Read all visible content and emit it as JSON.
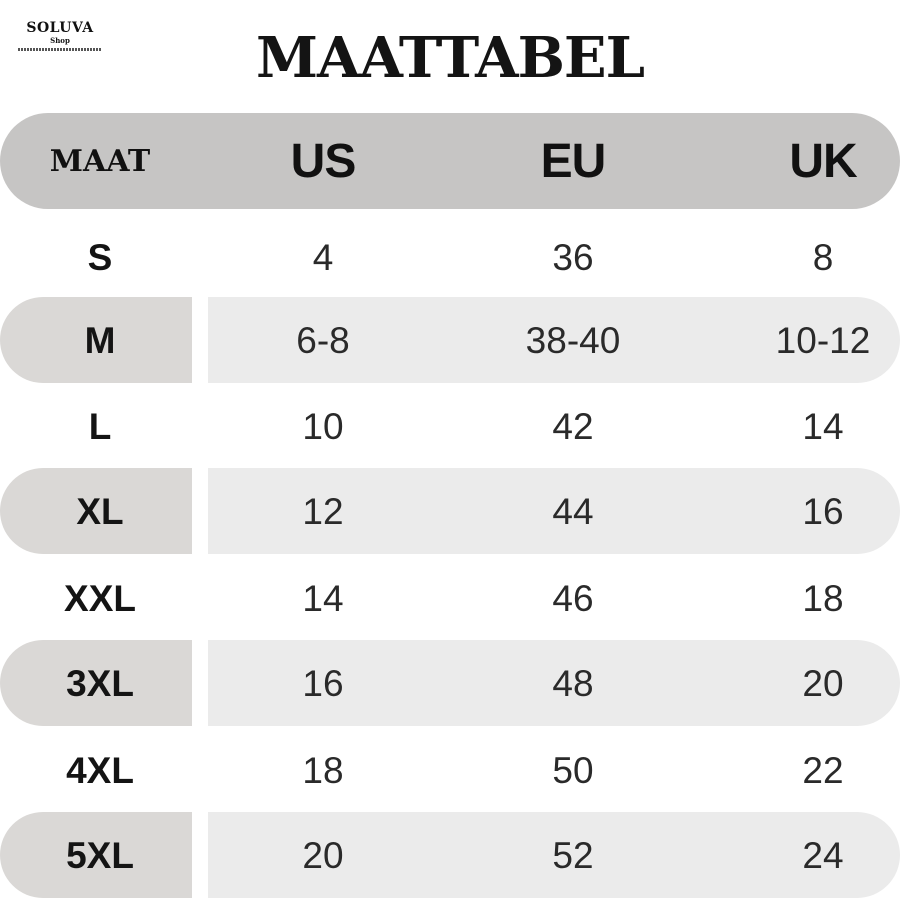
{
  "logo": {
    "name": "SOLUVA",
    "sub": "Shop"
  },
  "title": "MAATTABEL",
  "header": {
    "size": "MAAT",
    "us": "US",
    "eu": "EU",
    "uk": "UK"
  },
  "rows": [
    {
      "size": "S",
      "us": "4",
      "eu": "36",
      "uk": "8"
    },
    {
      "size": "M",
      "us": "6-8",
      "eu": "38-40",
      "uk": "10-12"
    },
    {
      "size": "L",
      "us": "10",
      "eu": "42",
      "uk": "14"
    },
    {
      "size": "XL",
      "us": "12",
      "eu": "44",
      "uk": "16"
    },
    {
      "size": "XXL",
      "us": "14",
      "eu": "46",
      "uk": "18"
    },
    {
      "size": "3XL",
      "us": "16",
      "eu": "48",
      "uk": "20"
    },
    {
      "size": "4XL",
      "us": "18",
      "eu": "50",
      "uk": "22"
    },
    {
      "size": "5XL",
      "us": "20",
      "eu": "52",
      "uk": "24"
    }
  ],
  "colors": {
    "header_band": "#c6c5c4",
    "row_band_size": "#dad8d6",
    "row_band_values": "#ebebeb",
    "text": "#151515"
  }
}
